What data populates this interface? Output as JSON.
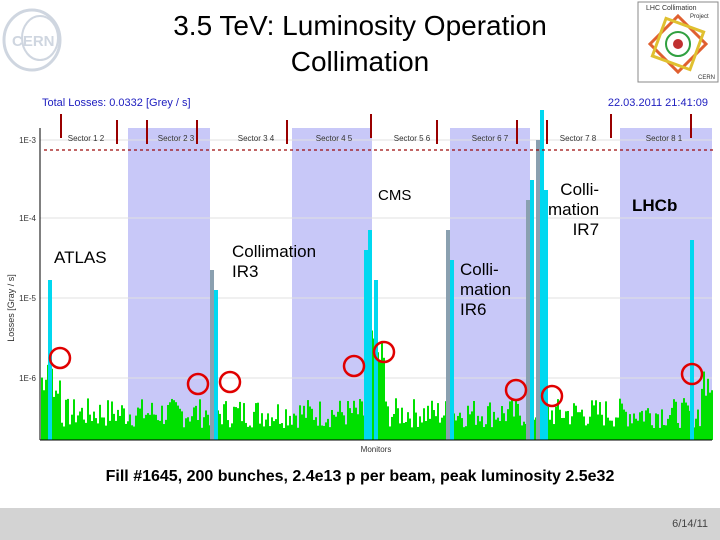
{
  "slide": {
    "title": "3.5 TeV: Luminosity Operation\nCollimation",
    "caption": "Fill #1645, 200 bunches, 2.4e13 p per beam, peak luminosity 2.5e32",
    "date": "6/14/11"
  },
  "logos": {
    "cern_text": "CERN",
    "lhc_title": "LHC Collimation",
    "lhc_subtitle": "Project",
    "lhc_cern": "CERN"
  },
  "plot": {
    "header_left": "Total Losses: 0.0332 [Grey / s]",
    "header_right": "22.03.2011 21:41:09",
    "ylabel": "Losses [Gray / s]",
    "xlabel": "Monitors",
    "yticks": [
      "1E-3",
      "1E-4",
      "1E-5",
      "1E-6"
    ],
    "sectors": [
      "Sector 1 2",
      "Sector 2 3",
      "Sector 3 4",
      "Sector 4 5",
      "Sector 5 6",
      "Sector 6 7",
      "Sector 7 8",
      "Sector 8 1"
    ],
    "colors": {
      "loss_bars": "#00e000",
      "shaded_arc": "#c8c8f8",
      "cyan": "#00d8f0",
      "threshold": "#990000",
      "circle": "#e00000"
    }
  },
  "labels": {
    "atlas": "ATLAS",
    "collimation_ir3": "Collimation\nIR3",
    "cms": "CMS",
    "collimation_ir6": "Colli-\nmation\nIR6",
    "collimation_ir7": "Colli-\nmation\nIR7",
    "lhcb": "LHCb"
  }
}
